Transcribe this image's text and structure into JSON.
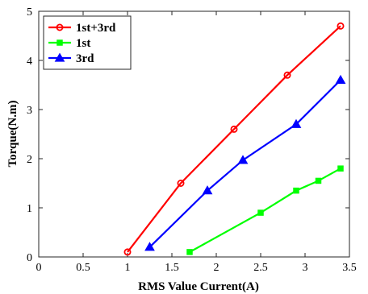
{
  "chart_data": {
    "type": "line",
    "title": "",
    "xlabel": "RMS Value Current(A)",
    "ylabel": "Torque(N.m)",
    "xlim": [
      0,
      3.5
    ],
    "ylim": [
      0,
      5
    ],
    "xticks": [
      "0",
      "0.5",
      "1",
      "1.5",
      "2",
      "2.5",
      "3",
      "3.5"
    ],
    "yticks": [
      "0",
      "1",
      "2",
      "3",
      "4",
      "5"
    ],
    "grid": false,
    "legend_position": "top-left",
    "series": [
      {
        "name": "1st+3rd",
        "color": "#ff0000",
        "marker": "circle",
        "x": [
          1.0,
          1.6,
          2.2,
          2.8,
          3.4
        ],
        "y": [
          0.1,
          1.5,
          2.6,
          3.7,
          4.7
        ]
      },
      {
        "name": "1st",
        "color": "#00ff00",
        "marker": "square",
        "x": [
          1.7,
          2.5,
          2.9,
          3.15,
          3.4
        ],
        "y": [
          0.1,
          0.9,
          1.35,
          1.55,
          1.8
        ]
      },
      {
        "name": "3rd",
        "color": "#0000ff",
        "marker": "triangle",
        "x": [
          1.25,
          1.9,
          2.3,
          2.9,
          3.4
        ],
        "y": [
          0.2,
          1.35,
          1.97,
          2.7,
          3.6
        ]
      }
    ]
  }
}
